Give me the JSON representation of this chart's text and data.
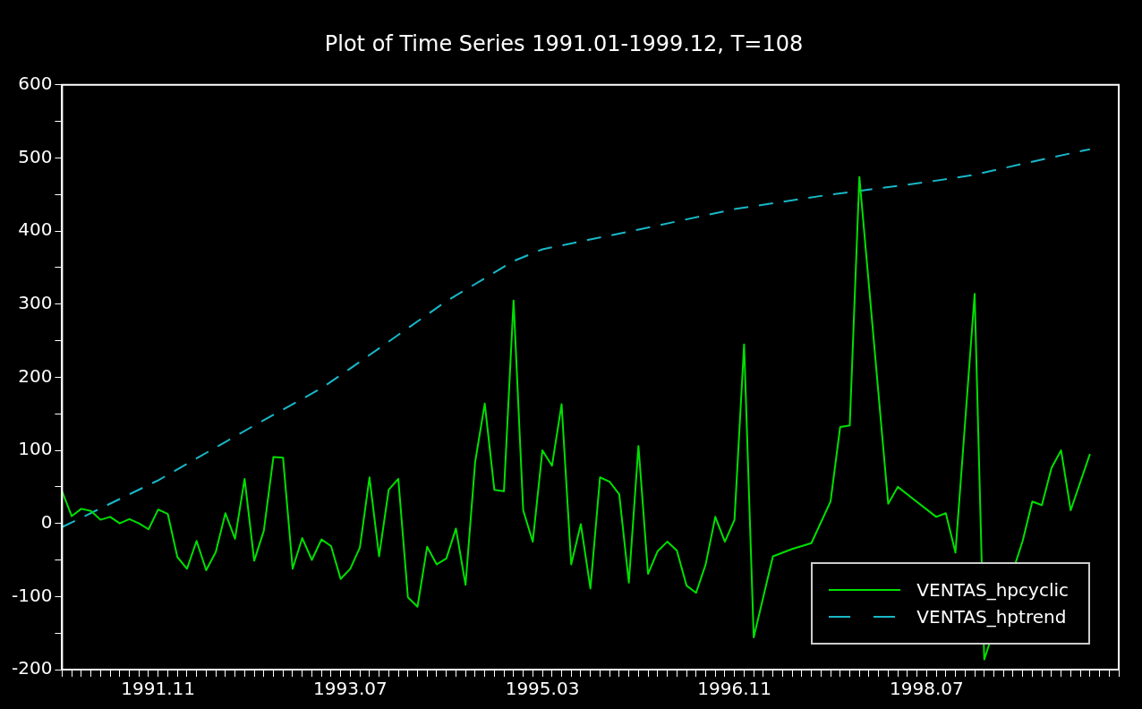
{
  "chart_data": {
    "type": "line",
    "title": "Plot of Time Series 1991.01-1999.12, T=108",
    "x": [
      "1991-01",
      "1991-02",
      "1991-03",
      "1991-04",
      "1991-05",
      "1991-06",
      "1991-07",
      "1991-08",
      "1991-09",
      "1991-10",
      "1991-11",
      "1991-12",
      "1992-01",
      "1992-02",
      "1992-03",
      "1992-04",
      "1992-05",
      "1992-06",
      "1992-07",
      "1992-08",
      "1992-09",
      "1992-10",
      "1992-11",
      "1992-12",
      "1993-01",
      "1993-02",
      "1993-03",
      "1993-04",
      "1993-05",
      "1993-06",
      "1993-07",
      "1993-08",
      "1993-09",
      "1993-10",
      "1993-11",
      "1993-12",
      "1994-01",
      "1994-02",
      "1994-03",
      "1994-04",
      "1994-05",
      "1994-06",
      "1994-07",
      "1994-08",
      "1994-09",
      "1994-10",
      "1994-11",
      "1994-12",
      "1995-01",
      "1995-02",
      "1995-03",
      "1995-04",
      "1995-05",
      "1995-06",
      "1995-07",
      "1995-08",
      "1995-09",
      "1995-10",
      "1995-11",
      "1995-12",
      "1996-01",
      "1996-02",
      "1996-03",
      "1996-04",
      "1996-05",
      "1996-06",
      "1996-07",
      "1996-08",
      "1996-09",
      "1996-10",
      "1996-11",
      "1996-12",
      "1997-01",
      "1997-02",
      "1997-03",
      "1997-04",
      "1997-05",
      "1997-06",
      "1997-07",
      "1997-08",
      "1997-09",
      "1997-10",
      "1997-11",
      "1997-12",
      "1998-01",
      "1998-02",
      "1998-03",
      "1998-04",
      "1998-05",
      "1998-06",
      "1998-07",
      "1998-08",
      "1998-09",
      "1998-10",
      "1998-11",
      "1998-12",
      "1999-01",
      "1999-02",
      "1999-03",
      "1999-04",
      "1999-05",
      "1999-06",
      "1999-07",
      "1999-08",
      "1999-09",
      "1999-10",
      "1999-11",
      "1999-12"
    ],
    "series": [
      {
        "name": "VENTAS_hpcyclic",
        "color": "#00e000",
        "line_style": "solid",
        "values": [
          44,
          10,
          20,
          17,
          5,
          9,
          0,
          6,
          0,
          -8,
          19,
          13,
          -46,
          -62,
          -24,
          -64,
          -39,
          14,
          -21,
          61,
          -51,
          -10,
          91,
          90,
          -62,
          -20,
          -50,
          -22,
          -31,
          -76,
          -62,
          -33,
          63,
          -45,
          46,
          61,
          -101,
          -114,
          -32,
          -56,
          -48,
          -7,
          -84,
          84,
          164,
          46,
          44,
          305,
          18,
          -25,
          100,
          79,
          163,
          -56,
          -1,
          -89,
          63,
          57,
          40,
          -81,
          106,
          -69,
          -38,
          -25,
          -37,
          -85,
          -95,
          -56,
          9,
          -25,
          5,
          245,
          -156,
          null,
          -45,
          null,
          -35,
          null,
          -27,
          null,
          30,
          132,
          134,
          474,
          null,
          null,
          27,
          50,
          null,
          null,
          null,
          9,
          14,
          -40,
          null,
          314,
          -186,
          null,
          null,
          null,
          -24,
          30,
          25,
          76,
          100,
          18,
          null,
          95
        ]
      },
      {
        "name": "VENTAS_hptrend",
        "color": "#18b8c8",
        "line_style": "dashed",
        "x": [
          "1991-01",
          "1991-11",
          "1992-09",
          "1993-04",
          "1993-07",
          "1994-05",
          "1994-12",
          "1995-03",
          "1996-01",
          "1996-11",
          "1997-09",
          "1997-12",
          "1998-07",
          "1998-12",
          "1999-05",
          "1999-12"
        ],
        "values": [
          -5,
          59,
          134,
          185,
          212,
          304,
          359,
          375,
          402,
          430,
          450,
          455,
          467,
          477,
          492,
          512
        ]
      }
    ],
    "xlim": [
      "1991-01",
      "2000-03"
    ],
    "xticks": [
      {
        "value": "1991-01",
        "label": null
      },
      {
        "value": "1991-02",
        "label": null
      },
      {
        "value": "1991-03",
        "label": null
      },
      {
        "value": "1991-04",
        "label": null
      },
      {
        "value": "1991-05",
        "label": null
      },
      {
        "value": "1991-06",
        "label": null
      },
      {
        "value": "1991-07",
        "label": null
      },
      {
        "value": "1991-08",
        "label": null
      },
      {
        "value": "1991-09",
        "label": null
      },
      {
        "value": "1991-10",
        "label": null
      },
      {
        "value": "1991-11",
        "label": "1991.11"
      },
      {
        "value": "1991-12",
        "label": null
      },
      {
        "value": "1992-01",
        "label": null
      },
      {
        "value": "1992-02",
        "label": null
      },
      {
        "value": "1992-03",
        "label": null
      },
      {
        "value": "1992-04",
        "label": null
      },
      {
        "value": "1992-05",
        "label": null
      },
      {
        "value": "1992-06",
        "label": null
      },
      {
        "value": "1992-07",
        "label": null
      },
      {
        "value": "1992-08",
        "label": null
      },
      {
        "value": "1992-09",
        "label": null
      },
      {
        "value": "1992-10",
        "label": null
      },
      {
        "value": "1992-11",
        "label": null
      },
      {
        "value": "1992-12",
        "label": null
      },
      {
        "value": "1993-01",
        "label": null
      },
      {
        "value": "1993-02",
        "label": null
      },
      {
        "value": "1993-03",
        "label": null
      },
      {
        "value": "1993-04",
        "label": null
      },
      {
        "value": "1993-05",
        "label": null
      },
      {
        "value": "1993-06",
        "label": null
      },
      {
        "value": "1993-07",
        "label": "1993.07"
      },
      {
        "value": "1993-08",
        "label": null
      },
      {
        "value": "1993-09",
        "label": null
      },
      {
        "value": "1993-10",
        "label": null
      },
      {
        "value": "1993-11",
        "label": null
      },
      {
        "value": "1993-12",
        "label": null
      },
      {
        "value": "1994-01",
        "label": null
      },
      {
        "value": "1994-02",
        "label": null
      },
      {
        "value": "1994-03",
        "label": null
      },
      {
        "value": "1994-04",
        "label": null
      },
      {
        "value": "1994-05",
        "label": null
      },
      {
        "value": "1994-06",
        "label": null
      },
      {
        "value": "1994-07",
        "label": null
      },
      {
        "value": "1994-08",
        "label": null
      },
      {
        "value": "1994-09",
        "label": null
      },
      {
        "value": "1994-10",
        "label": null
      },
      {
        "value": "1994-11",
        "label": null
      },
      {
        "value": "1994-12",
        "label": null
      },
      {
        "value": "1995-01",
        "label": null
      },
      {
        "value": "1995-02",
        "label": null
      },
      {
        "value": "1995-03",
        "label": "1995.03"
      },
      {
        "value": "1995-04",
        "label": null
      },
      {
        "value": "1995-05",
        "label": null
      },
      {
        "value": "1995-06",
        "label": null
      },
      {
        "value": "1995-07",
        "label": null
      },
      {
        "value": "1995-08",
        "label": null
      },
      {
        "value": "1995-09",
        "label": null
      },
      {
        "value": "1995-10",
        "label": null
      },
      {
        "value": "1995-11",
        "label": null
      },
      {
        "value": "1995-12",
        "label": null
      },
      {
        "value": "1996-01",
        "label": null
      },
      {
        "value": "1996-02",
        "label": null
      },
      {
        "value": "1996-03",
        "label": null
      },
      {
        "value": "1996-04",
        "label": null
      },
      {
        "value": "1996-05",
        "label": null
      },
      {
        "value": "1996-06",
        "label": null
      },
      {
        "value": "1996-07",
        "label": null
      },
      {
        "value": "1996-08",
        "label": null
      },
      {
        "value": "1996-09",
        "label": null
      },
      {
        "value": "1996-10",
        "label": null
      },
      {
        "value": "1996-11",
        "label": "1996.11"
      },
      {
        "value": "1996-12",
        "label": null
      },
      {
        "value": "1997-01",
        "label": null
      },
      {
        "value": "1997-02",
        "label": null
      },
      {
        "value": "1997-03",
        "label": null
      },
      {
        "value": "1997-04",
        "label": null
      },
      {
        "value": "1997-05",
        "label": null
      },
      {
        "value": "1997-06",
        "label": null
      },
      {
        "value": "1997-07",
        "label": null
      },
      {
        "value": "1997-08",
        "label": null
      },
      {
        "value": "1997-09",
        "label": null
      },
      {
        "value": "1997-10",
        "label": null
      },
      {
        "value": "1997-11",
        "label": null
      },
      {
        "value": "1997-12",
        "label": null
      },
      {
        "value": "1998-01",
        "label": null
      },
      {
        "value": "1998-02",
        "label": null
      },
      {
        "value": "1998-03",
        "label": null
      },
      {
        "value": "1998-04",
        "label": null
      },
      {
        "value": "1998-05",
        "label": null
      },
      {
        "value": "1998-06",
        "label": null
      },
      {
        "value": "1998-07",
        "label": "1998.07"
      },
      {
        "value": "1998-08",
        "label": null
      },
      {
        "value": "1998-09",
        "label": null
      },
      {
        "value": "1998-10",
        "label": null
      },
      {
        "value": "1998-11",
        "label": null
      },
      {
        "value": "1998-12",
        "label": null
      },
      {
        "value": "1999-01",
        "label": null
      },
      {
        "value": "1999-02",
        "label": null
      },
      {
        "value": "1999-03",
        "label": null
      },
      {
        "value": "1999-04",
        "label": null
      },
      {
        "value": "1999-05",
        "label": null
      },
      {
        "value": "1999-06",
        "label": null
      },
      {
        "value": "1999-07",
        "label": null
      },
      {
        "value": "1999-08",
        "label": null
      },
      {
        "value": "1999-09",
        "label": null
      },
      {
        "value": "1999-10",
        "label": null
      },
      {
        "value": "1999-11",
        "label": null
      },
      {
        "value": "1999-12",
        "label": null
      },
      {
        "value": "2000-01",
        "label": null
      },
      {
        "value": "2000-02",
        "label": null
      },
      {
        "value": "2000-03",
        "label": null
      }
    ],
    "ylim": [
      -200,
      600
    ],
    "yticks": [
      -200,
      {
        "value": -150,
        "label": null
      },
      -100,
      {
        "value": -50,
        "label": null
      },
      0,
      {
        "value": 50,
        "label": null
      },
      100,
      {
        "value": 150,
        "label": null
      },
      200,
      {
        "value": 250,
        "label": null
      },
      300,
      {
        "value": 350,
        "label": null
      },
      400,
      {
        "value": 450,
        "label": null
      },
      500,
      {
        "value": 550,
        "label": null
      },
      600
    ],
    "legend": "bottom right",
    "grid": false,
    "marker": "none"
  }
}
